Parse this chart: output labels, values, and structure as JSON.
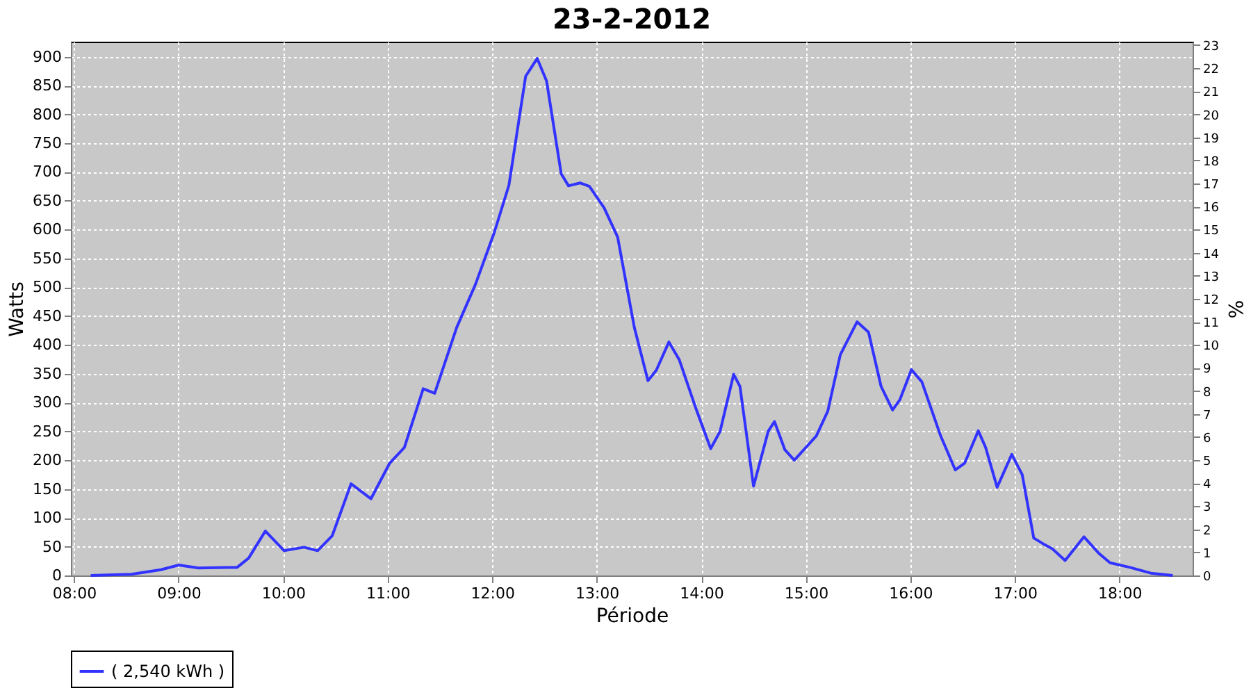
{
  "chart_data": {
    "type": "line",
    "title": "23-2-2012",
    "xlabel": "Période",
    "ylabel": "Watts",
    "y2label": "%",
    "xlim": [
      7.97,
      18.7
    ],
    "xticks": [
      {
        "value": 8,
        "label": "08:00"
      },
      {
        "value": 9,
        "label": "09:00"
      },
      {
        "value": 10,
        "label": "10:00"
      },
      {
        "value": 11,
        "label": "11:00"
      },
      {
        "value": 12,
        "label": "12:00"
      },
      {
        "value": 13,
        "label": "13:00"
      },
      {
        "value": 14,
        "label": "14:00"
      },
      {
        "value": 15,
        "label": "15:00"
      },
      {
        "value": 16,
        "label": "16:00"
      },
      {
        "value": 17,
        "label": "17:00"
      },
      {
        "value": 18,
        "label": "18:00"
      }
    ],
    "ylim": [
      0,
      926
    ],
    "yticks": [
      0,
      50,
      100,
      150,
      200,
      250,
      300,
      350,
      400,
      450,
      500,
      550,
      600,
      650,
      700,
      750,
      800,
      850,
      900
    ],
    "y2lim": [
      0,
      23.15
    ],
    "y2ticks": [
      0,
      1,
      2,
      3,
      4,
      5,
      6,
      7,
      8,
      9,
      10,
      11,
      12,
      13,
      14,
      15,
      16,
      17,
      18,
      19,
      20,
      21,
      22,
      23
    ],
    "grid": true,
    "legend": "bottom",
    "marker": "none",
    "line_style": "solid",
    "series": [
      {
        "name": "( 2,540 kWh )",
        "color": "#3333ff",
        "x": [
          8.16,
          8.55,
          8.83,
          9.0,
          9.19,
          9.47,
          9.56,
          9.67,
          9.83,
          10.01,
          10.2,
          10.33,
          10.47,
          10.65,
          10.84,
          11.02,
          11.16,
          11.34,
          11.45,
          11.66,
          11.84,
          12.02,
          12.16,
          12.32,
          12.43,
          12.52,
          12.66,
          12.73,
          12.84,
          12.93,
          13.07,
          13.2,
          13.36,
          13.49,
          13.57,
          13.69,
          13.79,
          13.95,
          14.09,
          14.18,
          14.31,
          14.37,
          14.5,
          14.64,
          14.7,
          14.8,
          14.89,
          15.1,
          15.21,
          15.33,
          15.49,
          15.6,
          15.72,
          15.83,
          15.9,
          16.01,
          16.11,
          16.29,
          16.43,
          16.52,
          16.65,
          16.72,
          16.83,
          16.97,
          17.07,
          17.18,
          17.27,
          17.36,
          17.48,
          17.66,
          17.8,
          17.91,
          18.1,
          18.3,
          18.51
        ],
        "values": [
          0,
          2,
          10,
          18,
          13,
          14,
          14,
          30,
          77,
          43,
          49,
          43,
          69,
          159,
          133,
          195,
          222,
          324,
          316,
          430,
          505,
          595,
          677,
          866,
          897,
          858,
          697,
          676,
          681,
          675,
          638,
          587,
          430,
          338,
          356,
          405,
          374,
          289,
          220,
          250,
          349,
          328,
          155,
          250,
          267,
          218,
          200,
          242,
          285,
          383,
          440,
          422,
          328,
          287,
          305,
          357,
          336,
          242,
          183,
          195,
          251,
          222,
          153,
          210,
          175,
          65,
          55,
          46,
          26,
          67,
          39,
          22,
          14,
          4,
          0
        ]
      }
    ]
  }
}
